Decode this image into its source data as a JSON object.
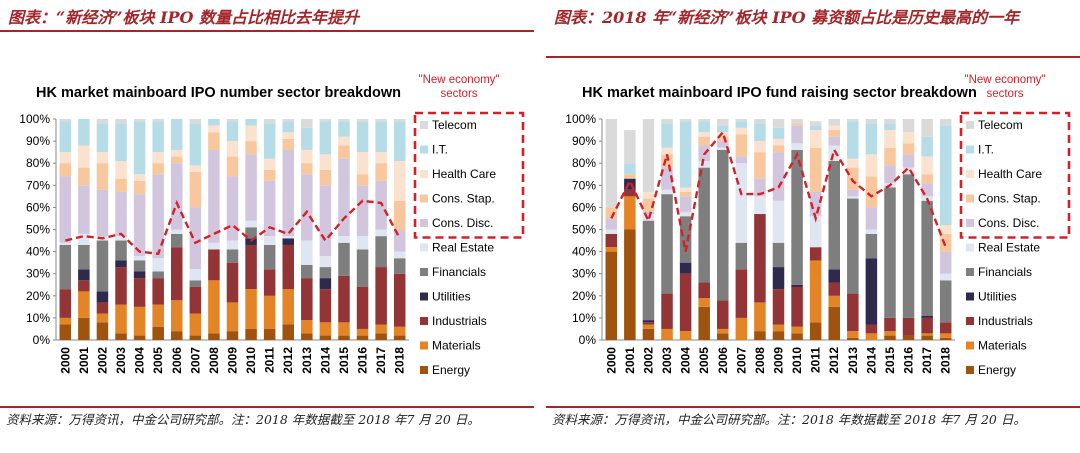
{
  "colors": {
    "caption": "#a3262a",
    "trend_line": "#d42027",
    "Energy": "#a0530f",
    "Materials": "#e38426",
    "Industrials": "#933536",
    "Utilities": "#2e2a4e",
    "Financials": "#7e7e7e",
    "Real Estate": "#dfe6f1",
    "Cons. Disc.": "#d2c6df",
    "Cons. Stap.": "#f8c79e",
    "Health Care": "#fbe2cf",
    "I.T.": "#b6dde7",
    "Telecom": "#dadada"
  },
  "left": {
    "caption": "图表：“新经济”板块 IPO 数量占比相比去年提升",
    "source": "资料来源：万得资讯，中金公司研究部。注：2018 年数据截至 2018 年7 月 20 日。"
  },
  "right": {
    "caption": "图表：2018 年“新经济”板块 IPO 募资额占比是历史最高的一年",
    "source": "资料来源：万得资讯，中金公司研究部。注：2018 年数据截至 2018 年7 月 20 日。"
  },
  "chart_data": [
    {
      "type": "bar",
      "stacked": true,
      "title": "HK market  mainboard IPO number sector breakdown",
      "annotation": "\"New economy\" sectors",
      "categories": [
        "2000",
        "2001",
        "2002",
        "2003",
        "2004",
        "2005",
        "2006",
        "2007",
        "2008",
        "2009",
        "2010",
        "2011",
        "2012",
        "2013",
        "2014",
        "2015",
        "2016",
        "2017",
        "2018"
      ],
      "y_ticks": [
        "0%",
        "10%",
        "20%",
        "30%",
        "40%",
        "50%",
        "60%",
        "70%",
        "80%",
        "90%",
        "100%"
      ],
      "ylim": [
        0,
        100
      ],
      "series": [
        {
          "name": "Energy",
          "values": [
            7,
            10,
            8,
            3,
            2,
            6,
            4,
            2,
            3,
            4,
            5,
            5,
            7,
            3,
            2,
            2,
            2,
            3,
            2
          ]
        },
        {
          "name": "Materials",
          "values": [
            3,
            12,
            4,
            13,
            13,
            10,
            14,
            10,
            24,
            13,
            18,
            15,
            16,
            6,
            6,
            6,
            3,
            4,
            4
          ]
        },
        {
          "name": "Industrials",
          "values": [
            13,
            5,
            5,
            17,
            13,
            12,
            24,
            12,
            14,
            18,
            20,
            12,
            20,
            19,
            15,
            21,
            19,
            26,
            24
          ]
        },
        {
          "name": "Utilities",
          "values": [
            0,
            5,
            5,
            3,
            3,
            0,
            0,
            0,
            0,
            0,
            3,
            0,
            3,
            0,
            5,
            0,
            0,
            0,
            0
          ]
        },
        {
          "name": "Financials",
          "values": [
            20,
            11,
            23,
            9,
            5,
            3,
            6,
            3,
            0,
            6,
            5,
            11,
            0,
            6,
            5,
            15,
            17,
            14,
            7
          ]
        },
        {
          "name": "Real Estate",
          "values": [
            1,
            5,
            2,
            2,
            2,
            6,
            2,
            5,
            3,
            4,
            3,
            4,
            1,
            11,
            5,
            3,
            6,
            3,
            3
          ]
        },
        {
          "name": "Cons. Disc.",
          "values": [
            30,
            22,
            21,
            20,
            28,
            38,
            30,
            28,
            42,
            29,
            30,
            25,
            39,
            30,
            32,
            35,
            23,
            22,
            10
          ]
        },
        {
          "name": "Cons. Stap.",
          "values": [
            6,
            8,
            12,
            6,
            6,
            5,
            3,
            16,
            8,
            9,
            6,
            5,
            5,
            5,
            7,
            6,
            5,
            8,
            13
          ]
        },
        {
          "name": "Health Care",
          "values": [
            5,
            10,
            5,
            8,
            3,
            5,
            3,
            3,
            3,
            7,
            7,
            5,
            3,
            6,
            7,
            4,
            10,
            5,
            18
          ]
        },
        {
          "name": "I.T.",
          "values": [
            14,
            12,
            13,
            17,
            24,
            14,
            14,
            19,
            3,
            9,
            3,
            16,
            5,
            10,
            15,
            7,
            14,
            14,
            18
          ]
        },
        {
          "name": "Telecom",
          "values": [
            1,
            0,
            2,
            2,
            1,
            1,
            0,
            2,
            0,
            1,
            0,
            2,
            1,
            4,
            1,
            1,
            1,
            1,
            1
          ]
        }
      ],
      "new_economy_share": [
        45,
        47,
        46,
        48,
        40,
        39,
        62,
        44,
        48,
        52,
        45,
        51,
        48,
        58,
        45,
        55,
        63,
        62,
        46
      ]
    },
    {
      "type": "bar",
      "stacked": true,
      "title": "HK market  mainboard IPO fund raising sector breakdown",
      "annotation": "\"New economy\" sectors",
      "categories": [
        "2000",
        "2001",
        "2002",
        "2003",
        "2004",
        "2005",
        "2006",
        "2007",
        "2008",
        "2009",
        "2010",
        "2011",
        "2012",
        "2013",
        "2014",
        "2015",
        "2016",
        "2017",
        "2018"
      ],
      "y_ticks": [
        "0%",
        "10%",
        "20%",
        "30%",
        "40%",
        "50%",
        "60%",
        "70%",
        "80%",
        "90%",
        "100%"
      ],
      "ylim": [
        0,
        100
      ],
      "series": [
        {
          "name": "Energy",
          "values": [
            40,
            50,
            5,
            0,
            0,
            15,
            3,
            0,
            4,
            4,
            3,
            8,
            15,
            1,
            0,
            2,
            2,
            2,
            1
          ]
        },
        {
          "name": "Materials",
          "values": [
            2,
            15,
            2,
            5,
            4,
            4,
            2,
            10,
            13,
            3,
            3,
            28,
            5,
            3,
            3,
            2,
            0,
            1,
            2
          ]
        },
        {
          "name": "Industrials",
          "values": [
            6,
            3,
            1,
            16,
            26,
            7,
            13,
            22,
            40,
            16,
            18,
            6,
            6,
            17,
            4,
            6,
            8,
            7,
            5
          ]
        },
        {
          "name": "Utilities",
          "values": [
            0,
            5,
            1,
            0,
            5,
            0,
            0,
            0,
            0,
            10,
            1,
            0,
            6,
            0,
            30,
            0,
            0,
            1,
            0
          ]
        },
        {
          "name": "Financials",
          "values": [
            0,
            0,
            45,
            45,
            21,
            52,
            68,
            12,
            0,
            11,
            61,
            0,
            49,
            43,
            11,
            59,
            65,
            52,
            19
          ]
        },
        {
          "name": "Real Estate",
          "values": [
            2,
            0,
            3,
            2,
            2,
            3,
            1,
            36,
            8,
            19,
            3,
            14,
            7,
            1,
            2,
            2,
            3,
            2,
            3
          ]
        },
        {
          "name": "Cons. Disc.",
          "values": [
            5,
            0,
            1,
            10,
            7,
            7,
            3,
            3,
            8,
            22,
            8,
            11,
            4,
            3,
            10,
            8,
            6,
            6,
            10
          ]
        },
        {
          "name": "Cons. Stap.",
          "values": [
            5,
            2,
            6,
            6,
            2,
            4,
            2,
            10,
            12,
            3,
            1,
            20,
            3,
            10,
            14,
            8,
            5,
            4,
            8
          ]
        },
        {
          "name": "Health Care",
          "values": [
            0,
            0,
            3,
            3,
            2,
            2,
            2,
            3,
            5,
            3,
            0,
            8,
            2,
            4,
            10,
            8,
            5,
            8,
            4
          ]
        },
        {
          "name": "I.T.",
          "values": [
            0,
            5,
            0,
            11,
            30,
            5,
            3,
            3,
            8,
            5,
            0,
            2,
            0,
            17,
            14,
            3,
            0,
            9,
            45
          ]
        },
        {
          "name": "Telecom",
          "values": [
            40,
            15,
            33,
            2,
            1,
            1,
            3,
            1,
            2,
            4,
            2,
            2,
            3,
            1,
            2,
            2,
            6,
            8,
            3
          ]
        }
      ],
      "new_economy_share": [
        55,
        72,
        54,
        84,
        40,
        84,
        94,
        66,
        66,
        69,
        84,
        55,
        86,
        72,
        65,
        70,
        78,
        64,
        42
      ]
    }
  ]
}
